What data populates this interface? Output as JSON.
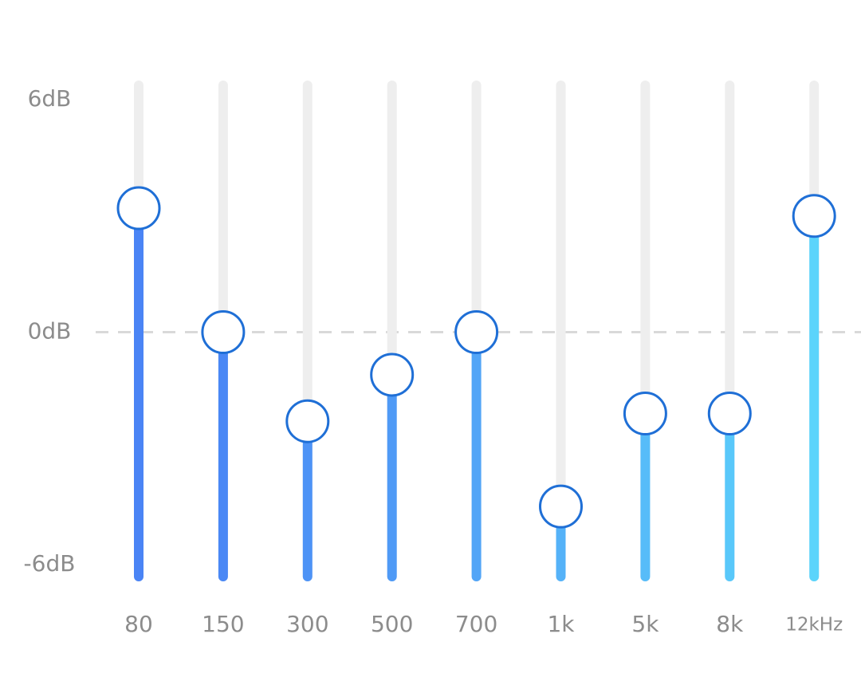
{
  "equalizer": {
    "bands": [
      "80",
      "150",
      "300",
      "500",
      "700",
      "1k",
      "5k",
      "8k",
      "12kHz"
    ],
    "values": [
      3.2,
      0,
      -2.3,
      -1.1,
      0,
      -4.5,
      -2.1,
      -2.1,
      3.0
    ],
    "colors": [
      "#4a84f5",
      "#4a88f5",
      "#4d93f6",
      "#4f9af6",
      "#52a5f7",
      "#55b2f8",
      "#57bcf9",
      "#59c8fa",
      "#5bd4fb"
    ],
    "ylim": [
      -6,
      6
    ],
    "yticks": [
      {
        "value": 6,
        "label": "6dB"
      },
      {
        "value": 0,
        "label": "0dB"
      },
      {
        "value": -6,
        "label": "-6dB"
      }
    ]
  }
}
